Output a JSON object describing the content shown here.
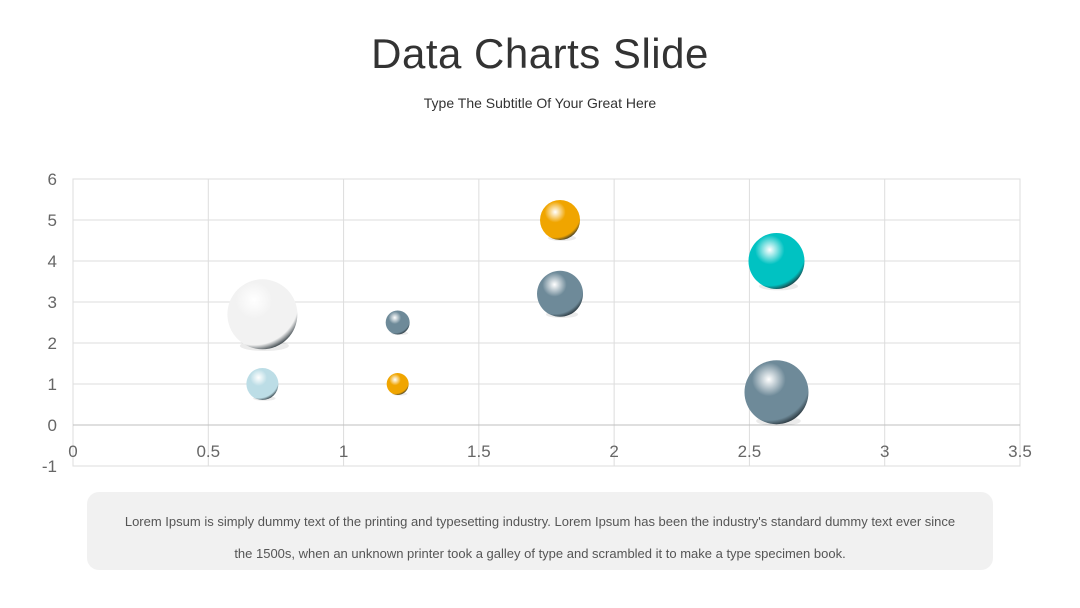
{
  "slide": {
    "title": "Data Charts Slide",
    "subtitle": "Type The Subtitle Of Your Great Here",
    "caption": "Lorem Ipsum is simply dummy text of the printing and typesetting industry. Lorem Ipsum has been the industry's standard dummy text ever since the 1500s, when an unknown printer took a galley of type and scrambled it to make a type specimen book."
  },
  "chart_data": {
    "type": "scatter",
    "subtype": "bubble",
    "title": "",
    "xlabel": "",
    "ylabel": "",
    "xlim": [
      0,
      3.5
    ],
    "ylim": [
      -1,
      6
    ],
    "x_ticks": [
      "0",
      "0.5",
      "1",
      "1.5",
      "2",
      "2.5",
      "3",
      "3.5"
    ],
    "y_ticks": [
      "-1",
      "0",
      "1",
      "2",
      "3",
      "4",
      "5",
      "6"
    ],
    "grid": true,
    "points": [
      {
        "x": 0.7,
        "y": 2.7,
        "size": 35,
        "color": "#f2f2f2"
      },
      {
        "x": 0.7,
        "y": 1.0,
        "size": 16,
        "color": "#bcdde6"
      },
      {
        "x": 1.2,
        "y": 2.5,
        "size": 12,
        "color": "#6e8a99"
      },
      {
        "x": 1.2,
        "y": 1.0,
        "size": 11,
        "color": "#f0a500"
      },
      {
        "x": 1.8,
        "y": 5.0,
        "size": 20,
        "color": "#f0a500"
      },
      {
        "x": 1.8,
        "y": 3.2,
        "size": 23,
        "color": "#6e8a99"
      },
      {
        "x": 2.6,
        "y": 4.0,
        "size": 28,
        "color": "#00c2c2"
      },
      {
        "x": 2.6,
        "y": 0.8,
        "size": 32,
        "color": "#6e8a99"
      }
    ]
  }
}
